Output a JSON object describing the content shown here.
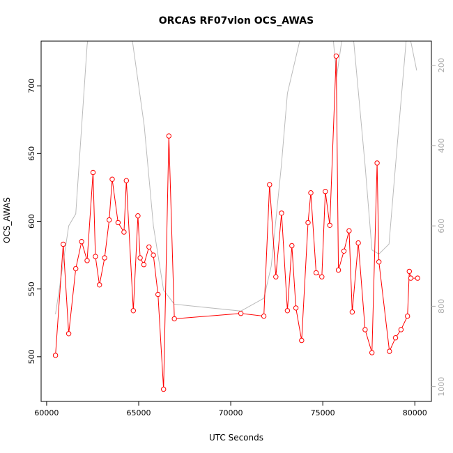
{
  "chart_data": {
    "type": "line",
    "title": "ORCAS RF07vlon OCS_AWAS",
    "xlabel": "UTC Seconds",
    "ylabel": "OCS_AWAS",
    "xlim": [
      59700,
      80900
    ],
    "ylim": [
      467,
      733
    ],
    "xticks": [
      60000,
      65000,
      70000,
      75000,
      80000
    ],
    "yticks": [
      500,
      550,
      600,
      650,
      700
    ],
    "y2": {
      "reversed": true,
      "lim": [
        1037,
        140
      ],
      "ticks": [
        200,
        400,
        600,
        800,
        1000
      ],
      "color": "#aaaaaa"
    },
    "series": [
      {
        "role": "primary",
        "color": "#ff0000",
        "markers": "open-circle",
        "x": [
          60480,
          60900,
          61200,
          61580,
          61900,
          62200,
          62520,
          62650,
          62870,
          63150,
          63400,
          63560,
          63880,
          64200,
          64330,
          64710,
          64960,
          65080,
          65280,
          65560,
          65800,
          66050,
          66350,
          66640,
          66940,
          70550,
          71800,
          72110,
          72450,
          72760,
          73080,
          73320,
          73540,
          73850,
          74200,
          74350,
          74640,
          74950,
          75140,
          75380,
          75730,
          75850,
          76150,
          76430,
          76600,
          76930,
          77300,
          77670,
          77950,
          78050,
          78620,
          78950,
          79250,
          79600,
          79700,
          79780,
          80150
        ],
        "y": [
          501,
          583,
          517,
          565,
          585,
          571,
          636,
          574,
          553,
          573,
          601,
          631,
          599,
          592,
          630,
          534,
          604,
          573,
          568,
          581,
          575,
          546,
          476,
          663,
          528,
          532,
          530,
          627,
          559,
          606,
          534,
          582,
          536,
          512,
          599,
          621,
          562,
          559,
          622,
          597,
          722,
          564,
          578,
          593,
          533,
          584,
          520,
          503,
          643,
          570,
          504,
          514,
          520,
          530,
          563,
          558,
          558
        ]
      },
      {
        "role": "secondary",
        "color": "#bbbbbb",
        "x": [
          60480,
          61200,
          61580,
          62200,
          62350,
          64540,
          65300,
          65800,
          66350,
          66940,
          70550,
          71800,
          72200,
          72750,
          73080,
          73950,
          74700,
          75500,
          75750,
          76150,
          76600,
          77300,
          77670,
          78050,
          78600,
          78950,
          79600,
          80100
        ],
        "y": [
          820,
          600,
          570,
          150,
          100,
          100,
          350,
          600,
          760,
          795,
          812,
          780,
          700,
          450,
          270,
          100,
          100,
          100,
          230,
          100,
          100,
          450,
          660,
          670,
          645,
          450,
          100,
          213
        ]
      }
    ]
  }
}
